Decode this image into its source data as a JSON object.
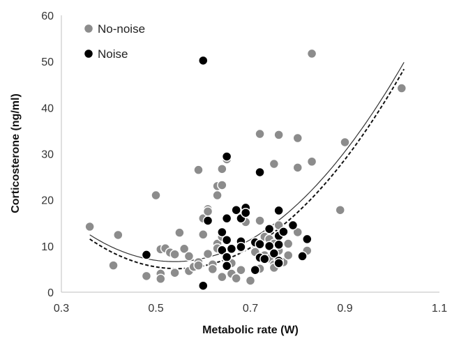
{
  "chart_data": {
    "type": "scatter",
    "title": "",
    "xlabel": "Metabolic rate (W)",
    "ylabel": "Corticosterone (ng/ml)",
    "xlim": [
      0.3,
      1.1
    ],
    "ylim": [
      0,
      60
    ],
    "xticks": [
      "0.3",
      "0.5",
      "0.7",
      "0.9",
      "1.1"
    ],
    "yticks": [
      "0",
      "10",
      "20",
      "30",
      "40",
      "50",
      "60"
    ],
    "grid": false,
    "legend_position": "top-left",
    "series": [
      {
        "name": "No-noise",
        "color": "#8c8c8c",
        "points": [
          [
            0.36,
            14.2
          ],
          [
            0.41,
            5.8
          ],
          [
            0.42,
            12.4
          ],
          [
            0.48,
            3.5
          ],
          [
            0.5,
            21.0
          ],
          [
            0.51,
            9.3
          ],
          [
            0.51,
            4.0
          ],
          [
            0.51,
            2.9
          ],
          [
            0.52,
            9.5
          ],
          [
            0.53,
            8.6
          ],
          [
            0.54,
            8.2
          ],
          [
            0.54,
            4.2
          ],
          [
            0.55,
            12.9
          ],
          [
            0.56,
            9.4
          ],
          [
            0.57,
            7.8
          ],
          [
            0.57,
            4.6
          ],
          [
            0.58,
            5.5
          ],
          [
            0.59,
            26.5
          ],
          [
            0.59,
            6.5
          ],
          [
            0.59,
            5.8
          ],
          [
            0.6,
            16.0
          ],
          [
            0.6,
            12.5
          ],
          [
            0.61,
            18.0
          ],
          [
            0.61,
            17.5
          ],
          [
            0.61,
            8.3
          ],
          [
            0.62,
            6.0
          ],
          [
            0.62,
            5.0
          ],
          [
            0.63,
            23.0
          ],
          [
            0.63,
            21.0
          ],
          [
            0.63,
            10.5
          ],
          [
            0.63,
            9.5
          ],
          [
            0.64,
            26.7
          ],
          [
            0.64,
            23.2
          ],
          [
            0.64,
            12.0
          ],
          [
            0.64,
            3.3
          ],
          [
            0.65,
            28.8
          ],
          [
            0.65,
            7.5
          ],
          [
            0.66,
            6.3
          ],
          [
            0.66,
            4.0
          ],
          [
            0.67,
            3.0
          ],
          [
            0.68,
            11.0
          ],
          [
            0.68,
            9.5
          ],
          [
            0.68,
            4.8
          ],
          [
            0.69,
            15.2
          ],
          [
            0.7,
            2.5
          ],
          [
            0.71,
            8.7
          ],
          [
            0.72,
            34.3
          ],
          [
            0.72,
            15.5
          ],
          [
            0.72,
            10.5
          ],
          [
            0.72,
            5.1
          ],
          [
            0.73,
            12.0
          ],
          [
            0.73,
            8.0
          ],
          [
            0.74,
            13.8
          ],
          [
            0.74,
            11.5
          ],
          [
            0.74,
            7.3
          ],
          [
            0.75,
            27.8
          ],
          [
            0.75,
            10.5
          ],
          [
            0.75,
            6.0
          ],
          [
            0.75,
            5.3
          ],
          [
            0.76,
            34.1
          ],
          [
            0.76,
            14.5
          ],
          [
            0.76,
            9.0
          ],
          [
            0.76,
            7.0
          ],
          [
            0.77,
            6.5
          ],
          [
            0.78,
            10.5
          ],
          [
            0.78,
            8.0
          ],
          [
            0.8,
            27.0
          ],
          [
            0.8,
            33.4
          ],
          [
            0.8,
            13.0
          ],
          [
            0.82,
            9.0
          ],
          [
            0.83,
            51.7
          ],
          [
            0.83,
            28.3
          ],
          [
            0.89,
            17.8
          ],
          [
            0.9,
            32.5
          ],
          [
            1.02,
            44.2
          ]
        ]
      },
      {
        "name": "Noise",
        "color": "#000000",
        "points": [
          [
            0.48,
            8.1
          ],
          [
            0.6,
            1.4
          ],
          [
            0.6,
            50.2
          ],
          [
            0.61,
            15.5
          ],
          [
            0.64,
            9.1
          ],
          [
            0.64,
            13.0
          ],
          [
            0.65,
            11.3
          ],
          [
            0.65,
            16.0
          ],
          [
            0.65,
            29.4
          ],
          [
            0.65,
            7.6
          ],
          [
            0.65,
            5.7
          ],
          [
            0.66,
            9.4
          ],
          [
            0.67,
            17.8
          ],
          [
            0.68,
            16.0
          ],
          [
            0.68,
            11.0
          ],
          [
            0.68,
            9.8
          ],
          [
            0.69,
            18.3
          ],
          [
            0.69,
            17.2
          ],
          [
            0.71,
            10.8
          ],
          [
            0.71,
            4.8
          ],
          [
            0.72,
            26.0
          ],
          [
            0.72,
            10.4
          ],
          [
            0.72,
            7.5
          ],
          [
            0.73,
            7.2
          ],
          [
            0.74,
            13.7
          ],
          [
            0.74,
            10.0
          ],
          [
            0.75,
            8.4
          ],
          [
            0.76,
            17.7
          ],
          [
            0.76,
            12.2
          ],
          [
            0.76,
            10.3
          ],
          [
            0.76,
            6.8
          ],
          [
            0.76,
            6.3
          ],
          [
            0.77,
            13.1
          ],
          [
            0.79,
            14.5
          ],
          [
            0.81,
            7.8
          ],
          [
            0.82,
            11.5
          ]
        ]
      }
    ],
    "fit_lines": [
      {
        "series": "No-noise",
        "style": "solid",
        "color": "#333333",
        "coefficients": [
          59.5,
          -196.4,
          182.4
        ]
      },
      {
        "series": "Noise",
        "style": "dashed",
        "color": "#111111",
        "coefficients": [
          60.76,
          -204.3,
          187.5
        ]
      }
    ]
  }
}
